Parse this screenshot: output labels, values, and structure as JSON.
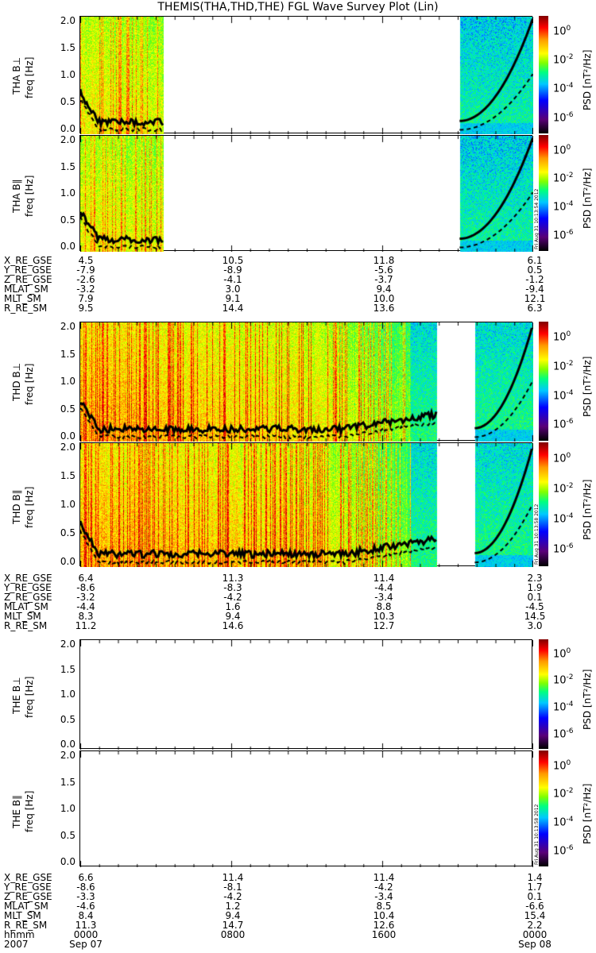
{
  "title": "THEMIS(THA,THD,THE) FGL Wave Survey Plot (Lin)",
  "timestamps": [
    "Fri Aug 31 10:13:54 2012",
    "Fri Aug 31 10:13:58 2012",
    "Fri Aug 31 10:13:58 2012"
  ],
  "chart_data": {
    "type": "heatmap",
    "yticks": [
      "0.0",
      "0.5",
      "1.0",
      "1.5",
      "2.0"
    ],
    "ylim": [
      0,
      2.0
    ],
    "colorbar": {
      "label": "PSD [nT²/Hz]",
      "ticks": [
        "0",
        "-2",
        "-4",
        "-6"
      ],
      "base": "10",
      "range_log10": [
        -7,
        2
      ]
    },
    "panels": [
      {
        "probe": "THA",
        "label": "THA B⊥",
        "ylabel": "freq [Hz]",
        "coverage_hours": [
          [
            0,
            4.4
          ],
          [
            20.1,
            24
          ]
        ]
      },
      {
        "probe": "THA",
        "label": "THA B∥",
        "ylabel": "freq [Hz]",
        "coverage_hours": [
          [
            0,
            4.4
          ],
          [
            20.1,
            24
          ]
        ]
      },
      {
        "probe": "THD",
        "label": "THD B⊥",
        "ylabel": "freq [Hz]",
        "coverage_hours": [
          [
            0,
            18.9
          ],
          [
            20.9,
            24
          ]
        ]
      },
      {
        "probe": "THD",
        "label": "THD B∥",
        "ylabel": "freq [Hz]",
        "coverage_hours": [
          [
            0,
            18.9
          ],
          [
            20.9,
            24
          ]
        ]
      },
      {
        "probe": "THE",
        "label": "THE B⊥",
        "ylabel": "freq [Hz]",
        "coverage_hours": []
      },
      {
        "probe": "THE",
        "label": "THE B∥",
        "ylabel": "freq [Hz]",
        "coverage_hours": []
      }
    ],
    "ephemeris_labels": [
      "X_RE_GSE",
      "Y_RE_GSE",
      "Z_RE_GSE",
      "MLAT_SM",
      "MLT_SM",
      "R_RE_SM"
    ],
    "ephemeris": [
      {
        "probe": "THA",
        "cols": [
          [
            "4.5",
            "-7.9",
            "-2.6",
            "-3.2",
            "7.9",
            "9.5"
          ],
          [
            "10.5",
            "-8.9",
            "-4.1",
            "3.0",
            "9.1",
            "14.4"
          ],
          [
            "11.8",
            "-5.6",
            "-3.7",
            "9.4",
            "10.0",
            "13.6"
          ],
          [
            "6.1",
            "0.5",
            "-1.2",
            "-9.4",
            "12.1",
            "6.3"
          ]
        ]
      },
      {
        "probe": "THD",
        "cols": [
          [
            "6.4",
            "-8.6",
            "-3.2",
            "-4.4",
            "8.3",
            "11.2"
          ],
          [
            "11.3",
            "-8.3",
            "-4.2",
            "1.6",
            "9.4",
            "14.6"
          ],
          [
            "11.4",
            "-4.4",
            "-3.4",
            "8.8",
            "10.3",
            "12.7"
          ],
          [
            "2.3",
            "1.9",
            "0.1",
            "-4.5",
            "14.5",
            "3.0"
          ]
        ]
      },
      {
        "probe": "THE",
        "cols": [
          [
            "6.6",
            "-8.6",
            "-3.3",
            "-4.6",
            "8.4",
            "11.3"
          ],
          [
            "11.4",
            "-8.1",
            "-4.2",
            "1.2",
            "9.4",
            "14.7"
          ],
          [
            "11.4",
            "-4.2",
            "-3.4",
            "8.5",
            "10.4",
            "12.6"
          ],
          [
            "1.4",
            "1.7",
            "0.1",
            "-6.6",
            "15.4",
            "2.2"
          ]
        ]
      }
    ],
    "xaxis": {
      "label1": "hhmm",
      "label2": "2007",
      "ticks": [
        "0000",
        "0800",
        "1600",
        "0000"
      ],
      "dates": [
        "Sep 07",
        "",
        "",
        "Sep 08"
      ]
    }
  }
}
